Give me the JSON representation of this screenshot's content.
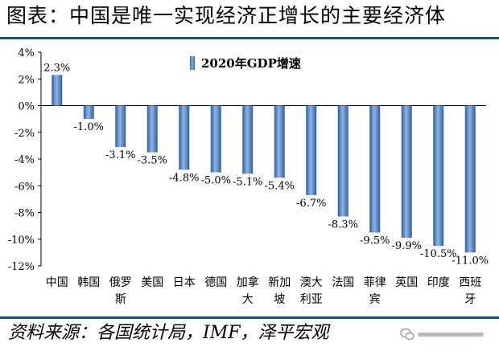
{
  "title": "图表：中国是唯一实现经济正增长的主要经济体",
  "source": "资料来源：各国统计局，IMF，泽平宏观",
  "watermark": {
    "icon": "wechat-icon"
  },
  "chart_data": {
    "type": "bar",
    "series": [
      {
        "name": "2020年GDP增速",
        "color": "#4a7fc1",
        "values": [
          2.3,
          -1.0,
          -3.1,
          -3.5,
          -4.8,
          -5.0,
          -5.1,
          -5.4,
          -6.7,
          -8.3,
          -9.5,
          -9.9,
          -10.5,
          -11.0
        ]
      }
    ],
    "categories": [
      [
        "中国"
      ],
      [
        "韩国"
      ],
      [
        "俄罗",
        "斯"
      ],
      [
        "美国"
      ],
      [
        "日本"
      ],
      [
        "德国"
      ],
      [
        "加拿",
        "大"
      ],
      [
        "新加",
        "坡"
      ],
      [
        "澳大",
        "利亚"
      ],
      [
        "法国"
      ],
      [
        "菲律",
        "宾"
      ],
      [
        "英国"
      ],
      [
        "印度"
      ],
      [
        "西班",
        "牙"
      ]
    ],
    "data_labels": [
      "2.3%",
      "-1.0%",
      "-3.1%",
      "-3.5%",
      "-4.8%",
      "-5.0%",
      "-5.1%",
      "-5.4%",
      "-6.7%",
      "-8.3%",
      "-9.5%",
      "-9.9%",
      "-10.5%",
      "-11.0%"
    ],
    "y_ticks": [
      4,
      2,
      0,
      -2,
      -4,
      -6,
      -8,
      -10,
      -12
    ],
    "y_tick_labels": [
      "4%",
      "2%",
      "0%",
      "-2%",
      "-4%",
      "-6%",
      "-8%",
      "-10%",
      "-12%"
    ],
    "ylim": [
      -12,
      4
    ],
    "legend_position": "top-center",
    "grid": false
  }
}
